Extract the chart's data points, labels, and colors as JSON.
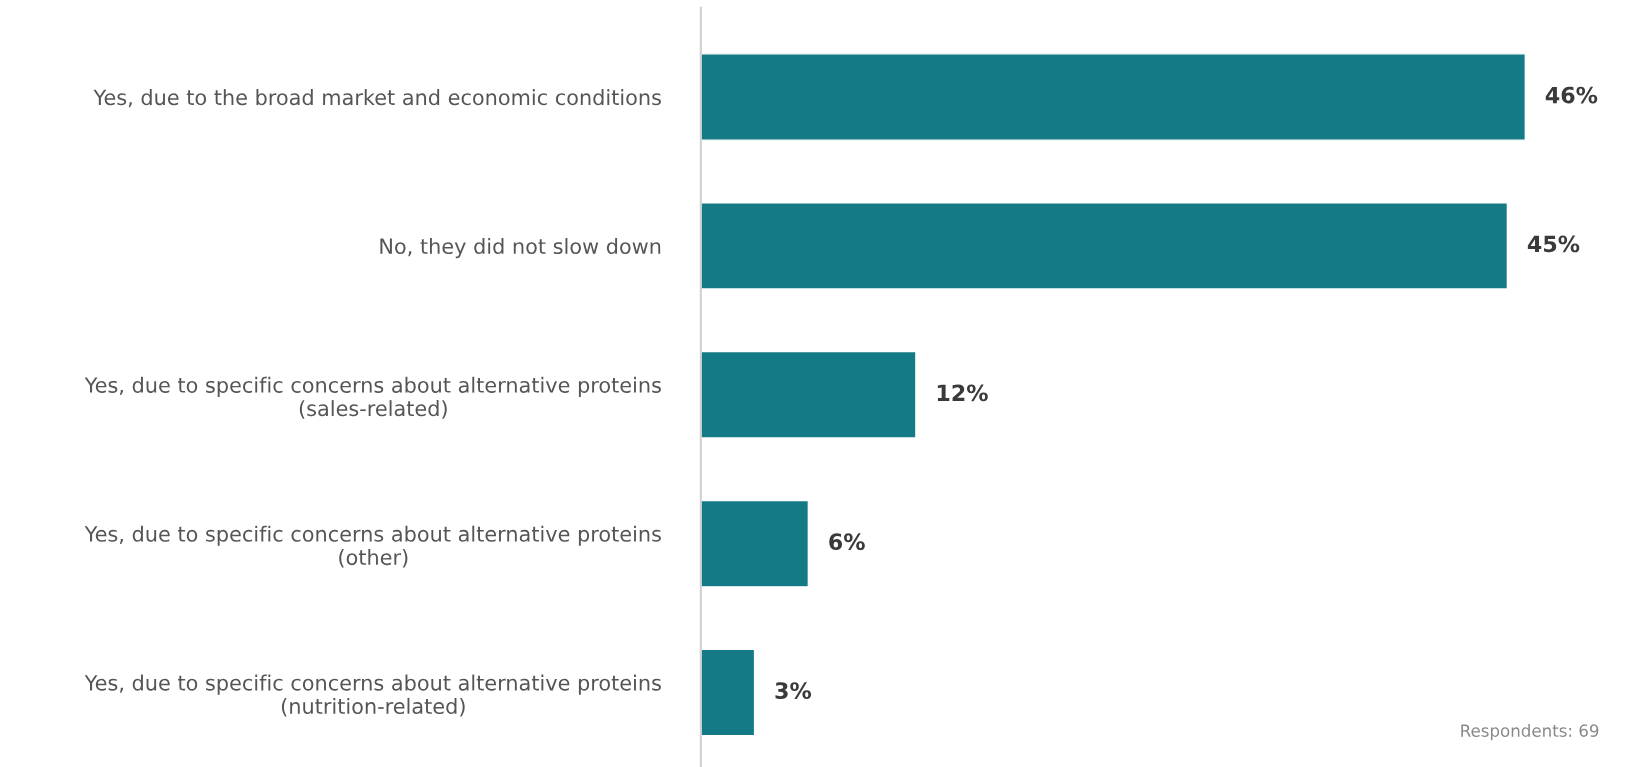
{
  "chart_data": {
    "type": "bar",
    "orientation": "horizontal",
    "categories": [
      "Yes, due to the broad market and economic conditions",
      "No, they did not slow down",
      "Yes, due to specific concerns about alternative proteins\n(sales-related)",
      "Yes, due to specific concerns about alternative proteins\n(other)",
      "Yes, due to specific concerns about alternative proteins\n(nutrition-related)"
    ],
    "values": [
      46,
      45,
      12,
      6,
      3
    ],
    "value_labels": [
      "46%",
      "45%",
      "12%",
      "6%",
      "3%"
    ],
    "color": "#147a85",
    "annotations": [
      "Respondents: 69"
    ]
  }
}
